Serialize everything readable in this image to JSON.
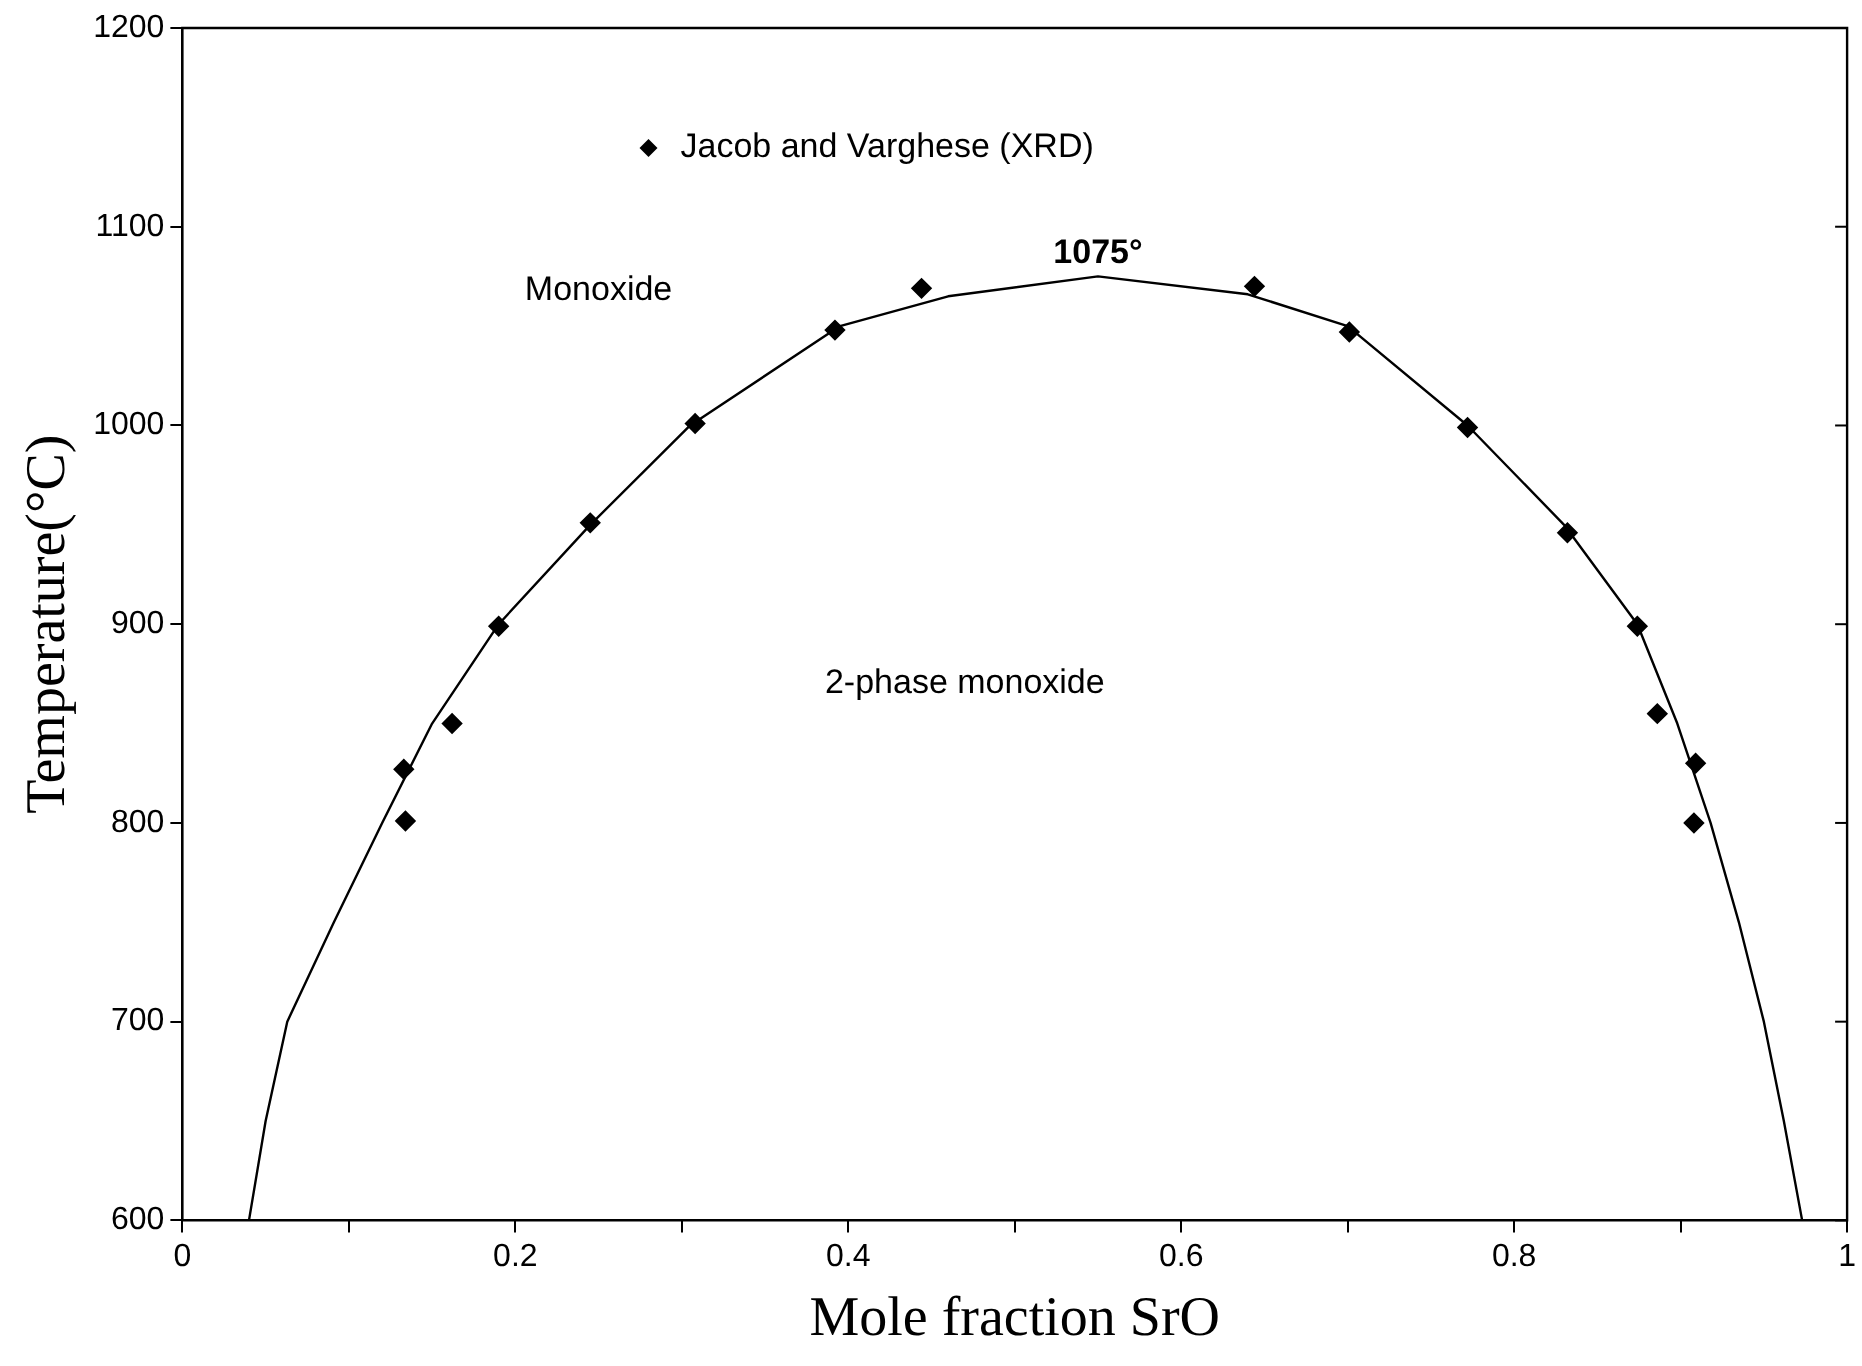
{
  "chart_data": {
    "type": "scatter",
    "xlabel": "Mole fraction SrO",
    "ylabel": "Temperature(°C)",
    "xlim": [
      0,
      1
    ],
    "xticks": [
      0,
      {
        "value": 0.1,
        "label": null
      },
      0.2,
      {
        "value": 0.3,
        "label": null
      },
      0.4,
      {
        "value": 0.5,
        "label": null
      },
      0.6,
      {
        "value": 0.7,
        "label": null
      },
      0.8,
      {
        "value": 0.9,
        "label": null
      },
      1
    ],
    "ylim": [
      600,
      1200
    ],
    "yticks": [
      600,
      700,
      800,
      900,
      1000,
      1100,
      1200
    ],
    "grid": false,
    "legend": "top left",
    "marker": "diamond",
    "series": [
      {
        "name": "Jacob and Varghese (XRD)",
        "color": "#000000",
        "x": [
          0.133,
          0.134,
          0.162,
          0.19,
          0.245,
          0.308,
          0.392,
          0.444,
          0.644,
          0.701,
          0.772,
          0.832,
          0.874,
          0.886,
          0.909,
          0.908
        ],
        "values": [
          827,
          801,
          850,
          899,
          951,
          1001,
          1048,
          1069,
          1070,
          1047,
          999,
          946,
          899,
          855,
          830,
          800
        ]
      },
      {
        "type": "line",
        "color": "#000000",
        "marker": "none",
        "x": [
          0.04,
          0.05,
          0.063,
          0.091,
          0.12,
          0.15,
          0.19,
          0.245,
          0.305,
          0.395,
          0.46,
          0.55,
          0.64,
          0.7,
          0.772,
          0.83,
          0.874,
          0.898,
          0.918,
          0.935,
          0.95,
          0.962,
          0.973
        ],
        "values": [
          600,
          650,
          700,
          750,
          800,
          850,
          900,
          950,
          1000,
          1050,
          1065,
          1075,
          1066,
          1050,
          1000,
          950,
          900,
          850,
          800,
          750,
          700,
          650,
          600
        ]
      }
    ],
    "annotations": [
      {
        "text": "1075°",
        "x": 0.55,
        "y": 1075
      },
      "Monoxide",
      "2-phase monoxide"
    ]
  }
}
